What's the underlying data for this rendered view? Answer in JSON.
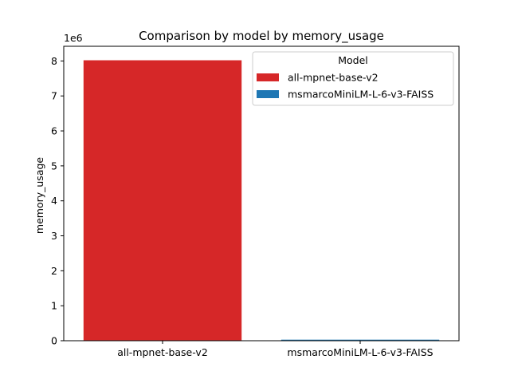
{
  "chart_data": {
    "type": "bar",
    "title": "Comparison by model by memory_usage",
    "xlabel": "",
    "ylabel": "memory_usage",
    "offset_text": "1e6",
    "categories": [
      "all-mpnet-base-v2",
      "msmarcoMiniLM-L-6-v3-FAISS"
    ],
    "values": [
      8020000,
      30000
    ],
    "colors": [
      "#d62728",
      "#1f77b4"
    ],
    "ylim": [
      0,
      8420000
    ],
    "yticks": [
      0,
      1000000,
      2000000,
      3000000,
      4000000,
      5000000,
      6000000,
      7000000,
      8000000
    ],
    "ytick_labels": [
      "0",
      "1",
      "2",
      "3",
      "4",
      "5",
      "6",
      "7",
      "8"
    ],
    "grid": false,
    "legend": {
      "title": "Model",
      "placement": "top-right",
      "entries": [
        {
          "label": "all-mpnet-base-v2",
          "color": "#d62728"
        },
        {
          "label": "msmarcoMiniLM-L-6-v3-FAISS",
          "color": "#1f77b4"
        }
      ]
    }
  }
}
